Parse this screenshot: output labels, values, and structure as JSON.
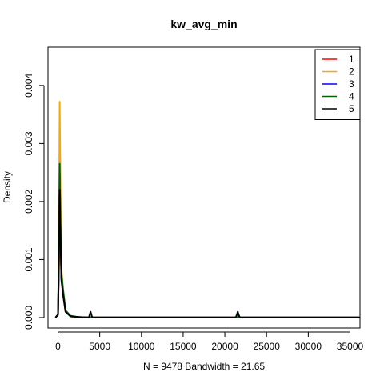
{
  "chart_data": {
    "type": "line",
    "title": "kw_avg_min",
    "xlabel": "N = 9478   Bandwidth = 21.65",
    "ylabel": "Density",
    "xlim": [
      -1200,
      36200
    ],
    "ylim": [
      -0.00018,
      0.00466
    ],
    "x_ticks": [
      0,
      5000,
      10000,
      15000,
      20000,
      25000,
      30000,
      35000
    ],
    "x_tick_labels": [
      "0",
      "5000",
      "10000",
      "15000",
      "20000",
      "25000",
      "30000",
      "35000"
    ],
    "y_ticks": [
      0.0,
      0.001,
      0.002,
      0.003,
      0.004
    ],
    "y_tick_labels": [
      "0.000",
      "0.001",
      "0.002",
      "0.003",
      "0.004"
    ],
    "legend_position": "top-right",
    "grid": false,
    "series": [
      {
        "name": "1",
        "color": "#ff0000",
        "points": [
          [
            -300,
            0
          ],
          [
            0,
            5e-05
          ],
          [
            100,
            0.0008
          ],
          [
            200,
            0.0022
          ],
          [
            300,
            0.0014
          ],
          [
            400,
            0.0007
          ],
          [
            600,
            0.0004
          ],
          [
            900,
            0.0001
          ],
          [
            1500,
            2e-05
          ],
          [
            2500,
            5e-06
          ],
          [
            36200,
            5e-06
          ]
        ]
      },
      {
        "name": "2",
        "color": "#ffa500",
        "points": [
          [
            -300,
            0
          ],
          [
            0,
            5e-05
          ],
          [
            100,
            0.0012
          ],
          [
            200,
            0.00372
          ],
          [
            300,
            0.0022
          ],
          [
            400,
            0.0009
          ],
          [
            600,
            0.0004
          ],
          [
            900,
            0.0001
          ],
          [
            1500,
            2e-05
          ],
          [
            2500,
            5e-06
          ],
          [
            36200,
            5e-06
          ]
        ]
      },
      {
        "name": "3",
        "color": "#0000ff",
        "points": [
          [
            -300,
            0
          ],
          [
            0,
            5e-05
          ],
          [
            100,
            0.0009
          ],
          [
            200,
            0.0025
          ],
          [
            300,
            0.0015
          ],
          [
            400,
            0.0007
          ],
          [
            600,
            0.00045
          ],
          [
            900,
            0.00012
          ],
          [
            1500,
            3e-05
          ],
          [
            2500,
            5e-06
          ],
          [
            36200,
            5e-06
          ]
        ]
      },
      {
        "name": "4",
        "color": "#006400",
        "points": [
          [
            -300,
            0
          ],
          [
            0,
            5e-05
          ],
          [
            100,
            0.0011
          ],
          [
            200,
            0.00265
          ],
          [
            300,
            0.0016
          ],
          [
            400,
            0.0008
          ],
          [
            600,
            0.0005
          ],
          [
            900,
            0.00012
          ],
          [
            1500,
            3e-05
          ],
          [
            2500,
            5e-06
          ],
          [
            36200,
            5e-06
          ]
        ]
      },
      {
        "name": "5",
        "color": "#000000",
        "points": [
          [
            -300,
            0
          ],
          [
            0,
            5e-05
          ],
          [
            100,
            0.0009
          ],
          [
            200,
            0.0022
          ],
          [
            300,
            0.0014
          ],
          [
            400,
            0.00065
          ],
          [
            600,
            0.0004
          ],
          [
            900,
            0.0001
          ],
          [
            1500,
            2e-05
          ],
          [
            3700,
            0.0
          ],
          [
            3800,
            5e-05
          ],
          [
            3900,
            0.0001
          ],
          [
            4000,
            5e-05
          ],
          [
            4100,
            0.0
          ],
          [
            21300,
            0.0
          ],
          [
            21450,
            5e-05
          ],
          [
            21550,
            0.0001
          ],
          [
            21650,
            5e-05
          ],
          [
            21800,
            0.0
          ],
          [
            36200,
            0.0
          ]
        ]
      }
    ]
  }
}
